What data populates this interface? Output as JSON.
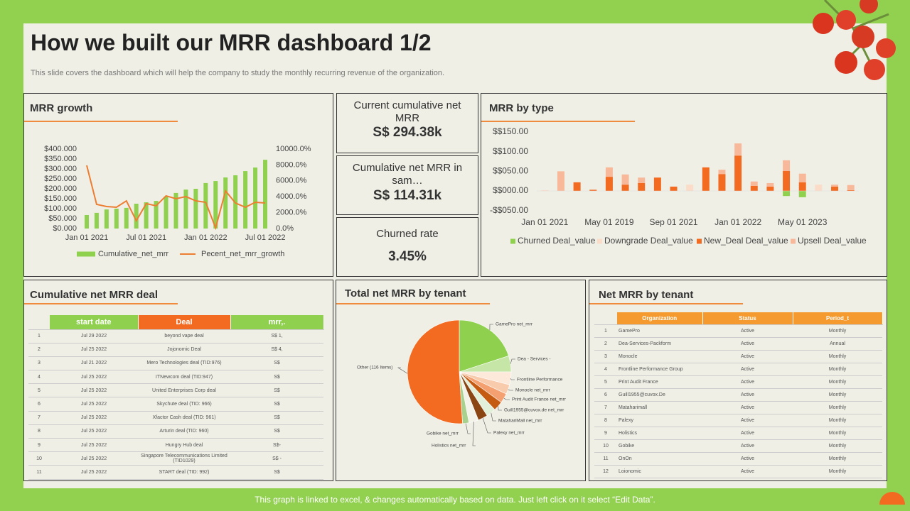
{
  "header": {
    "title": "How we built our MRR dashboard 1/2",
    "subtitle": "This slide covers the dashboard which will help the company to study the monthly recurring revenue of the organization."
  },
  "kpis": [
    {
      "label": "Current cumulative net MRR",
      "value": "S$ 294.38k"
    },
    {
      "label": "Cumulative net MRR in sam…",
      "value": "S$ 114.31k"
    },
    {
      "label": "Churned rate",
      "value": "3.45%"
    }
  ],
  "chart_data": [
    {
      "type": "combo",
      "title": "MRR growth",
      "legend": "bottom",
      "categories": [
        "Jan 01 2021",
        null,
        null,
        null,
        null,
        null,
        "Jul 01 2021",
        null,
        null,
        null,
        null,
        null,
        "Jan 01 2022",
        null,
        null,
        null,
        null,
        null,
        "Jul 01 2022"
      ],
      "series": [
        {
          "name": "Cumulative_net_mrr",
          "type": "bar",
          "color": "#8fd14f",
          "values": [
            68,
            79,
            96,
            100,
            104,
            125,
            132,
            139,
            161,
            179,
            196,
            200,
            229,
            239,
            257,
            268,
            289,
            307,
            346
          ]
        },
        {
          "name": "Pecent_net_mrr_growth",
          "type": "line",
          "axis": "y2",
          "color": "#ed7d31",
          "values": [
            7950,
            3040,
            2770,
            2680,
            3480,
            980,
            3130,
            2860,
            4110,
            3750,
            4020,
            3480,
            3300,
            90,
            4730,
            3210,
            2680,
            3300,
            3210
          ]
        }
      ],
      "ylim": [
        0,
        400
      ],
      "yticks": [
        {
          "value": 0,
          "label": "$0.000"
        },
        {
          "value": 50,
          "label": "$50.000"
        },
        {
          "value": 100,
          "label": "$100.000"
        },
        {
          "value": 150,
          "label": "$150.000"
        },
        {
          "value": 200,
          "label": "$200.000"
        },
        {
          "value": 250,
          "label": "$250.000"
        },
        {
          "value": 300,
          "label": "$300.000"
        },
        {
          "value": 350,
          "label": "$350.000"
        },
        {
          "value": 400,
          "label": "$400.000"
        }
      ],
      "y2lim": [
        0,
        10000
      ],
      "y2ticks": [
        {
          "value": 0,
          "label": "0.0%"
        },
        {
          "value": 2000,
          "label": "2000.0%"
        },
        {
          "value": 4000,
          "label": "4000.0%"
        },
        {
          "value": 6000,
          "label": "6000.0%"
        },
        {
          "value": 8000,
          "label": "8000.0%"
        },
        {
          "value": 10000,
          "label": "10000.0%"
        }
      ]
    },
    {
      "type": "bar",
      "stacked": true,
      "title": "MRR by type",
      "legend": "bottom",
      "categories": [
        "Jan 01 2021",
        null,
        null,
        null,
        "May 01 2019",
        null,
        null,
        null,
        "Sep  01 2021",
        null,
        null,
        null,
        "Jan 01 2022",
        null,
        null,
        null,
        "May 01 2023",
        null,
        null,
        null
      ],
      "series": [
        {
          "name": "Churned Deal_value",
          "color": "#8fd14f",
          "values": [
            0,
            0,
            0,
            0,
            0,
            0,
            0,
            0,
            0,
            0,
            0,
            0,
            0,
            0,
            0,
            -13,
            -16,
            0,
            0,
            0
          ]
        },
        {
          "name": "Downgrade Deal_value",
          "color": "#fbdcc8",
          "values": [
            2,
            0,
            0,
            0,
            0,
            0,
            0,
            0,
            0,
            16,
            0,
            0,
            0,
            0,
            0,
            0,
            0,
            16,
            0,
            0
          ]
        },
        {
          "name": "New_Deal Deal_value",
          "color": "#f26b21",
          "values": [
            0,
            0,
            22,
            3,
            36,
            16,
            20,
            34,
            11,
            0,
            60,
            43,
            90,
            13,
            11,
            51,
            22,
            0,
            11,
            2
          ]
        },
        {
          "name": "Upsell Deal_value",
          "color": "#f8b99a",
          "values": [
            0,
            50,
            0,
            0,
            24,
            26,
            14,
            0,
            0,
            0,
            0,
            11,
            31,
            11,
            9,
            27,
            22,
            0,
            5,
            13
          ]
        }
      ],
      "ylim": [
        -50,
        150
      ],
      "yticks": [
        {
          "value": -50,
          "label": "-$$050.00"
        },
        {
          "value": 0,
          "label": "$$000.00"
        },
        {
          "value": 50,
          "label": "$$050.00"
        },
        {
          "value": 100,
          "label": "$$100.00"
        },
        {
          "value": 150,
          "label": "$$150.00"
        }
      ]
    },
    {
      "type": "pie",
      "title": "Total net MRR by tenant",
      "categories": [
        "GamePro net_mrr",
        "Dea - Services -",
        "Frontline Performance",
        "Monocle net_mrr",
        "Print Audit France net_mrr",
        "Guill1955@cuvox.de net_mrr",
        "MatahariMall net_mrr",
        "Palexy net_mrr",
        "Holistics net_mrr",
        "Gobike net_mrr",
        "Other (116 Items)"
      ],
      "values": [
        20,
        5,
        4,
        3,
        3,
        3,
        3,
        3,
        3,
        2,
        51
      ],
      "colors": [
        "#8fd14f",
        "#c5e6a6",
        "#fde9d9",
        "#f8cbad",
        "#f4a070",
        "#c55a11",
        "#e2f0d9",
        "#8b4513",
        "#f3f3ea",
        "#a9d18e",
        "#f26b21"
      ]
    }
  ],
  "deal_table": {
    "title": "Cumulative net MRR deal",
    "columns": [
      "start date",
      "Deal",
      "mrr,."
    ],
    "rows": [
      [
        "1",
        "Jul 29 2022",
        "beyond vape deal",
        "S$ 1,"
      ],
      [
        "2",
        "Jul 25 2022",
        "Jojonomic Deal",
        "S$ 4,"
      ],
      [
        "3",
        "Jul 21 2022",
        "Mero Technologies deal (TID:976)",
        "S$"
      ],
      [
        "4",
        "Jul 25 2022",
        "ITNewcom deal (TID:947)",
        "S$"
      ],
      [
        "5",
        "Jul 25 2022",
        "United Enterprises Corp deal",
        "S$"
      ],
      [
        "6",
        "Jul 25 2022",
        "Skychute deal (TID: 966)",
        "S$"
      ],
      [
        "7",
        "Jul 25 2022",
        "Xfactor Cash deal (TID: 961)",
        "S$"
      ],
      [
        "8",
        "Jul 25 2022",
        "Arturin deal (TID: 960)",
        "S$"
      ],
      [
        "9",
        "Jul 25 2022",
        "Hungry Hub deal",
        "S$-"
      ],
      [
        "10",
        "Jul 25 2022",
        "Singapore Telecommunications Limited (TID1029)",
        "S$ -"
      ],
      [
        "11",
        "Jul 25 2022",
        "START deal (TID: 992)",
        "S$"
      ]
    ]
  },
  "tenant_table": {
    "title": "Net MRR by tenant",
    "columns": [
      "Organization",
      "Status",
      "Period_t"
    ],
    "rows": [
      [
        "1",
        "GamePro",
        "Active",
        "Monthly"
      ],
      [
        "2",
        "Dea-Services-Packform",
        "Active",
        "Annual"
      ],
      [
        "3",
        "Monocle",
        "Active",
        "Monthly"
      ],
      [
        "4",
        "Frontline Performance Group",
        "Active",
        "Monthly"
      ],
      [
        "5",
        "Print Audit France",
        "Active",
        "Monthly"
      ],
      [
        "6",
        "Guill1955@cuvox.De",
        "Active",
        "Monthly"
      ],
      [
        "7",
        "Mataharimall",
        "Active",
        "Monthly"
      ],
      [
        "8",
        "Palexy",
        "Active",
        "Monthly"
      ],
      [
        "9",
        "Holistics",
        "Active",
        "Monthly"
      ],
      [
        "10",
        "Gobike",
        "Active",
        "Monthly"
      ],
      [
        "11",
        "OnOn",
        "Active",
        "Monthly"
      ],
      [
        "12",
        "Loionomic",
        "Active",
        "Monthly"
      ]
    ]
  },
  "footer": "This graph is linked to excel, & changes automatically based on data. Just left click on it select “Edit Data”."
}
